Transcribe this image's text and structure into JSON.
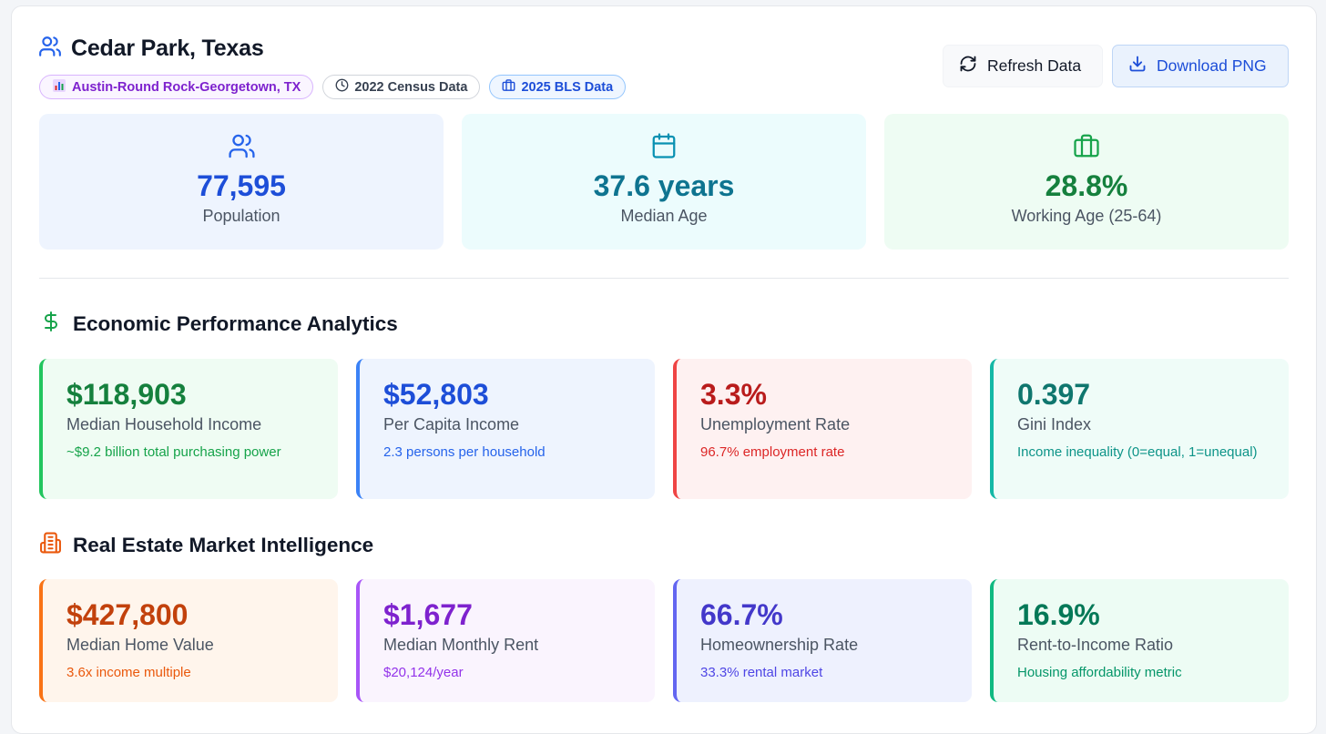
{
  "header": {
    "title": "Cedar Park, Texas",
    "badges": {
      "metro": "Austin-Round Rock-Georgetown, TX",
      "census": "2022 Census Data",
      "bls": "2025 BLS Data"
    },
    "refresh_label": "Refresh Data",
    "download_label": "Download PNG"
  },
  "stats": [
    {
      "value": "77,595",
      "label": "Population",
      "icon": "users-icon",
      "color": "#1d4ed8"
    },
    {
      "value": "37.6 years",
      "label": "Median Age",
      "icon": "calendar-icon",
      "color": "#0e7490"
    },
    {
      "value": "28.8%",
      "label": "Working Age (25-64)",
      "icon": "briefcase-icon",
      "color": "#15803d"
    }
  ],
  "economic": {
    "title": "Economic Performance Analytics",
    "cards": [
      {
        "value": "$118,903",
        "label": "Median Household Income",
        "sub": "~$9.2 billion total purchasing power"
      },
      {
        "value": "$52,803",
        "label": "Per Capita Income",
        "sub": "2.3 persons per household"
      },
      {
        "value": "3.3%",
        "label": "Unemployment Rate",
        "sub": "96.7% employment rate"
      },
      {
        "value": "0.397",
        "label": "Gini Index",
        "sub": "Income inequality (0=equal, 1=unequal)"
      }
    ]
  },
  "real_estate": {
    "title": "Real Estate Market Intelligence",
    "cards": [
      {
        "value": "$427,800",
        "label": "Median Home Value",
        "sub": "3.6x income multiple"
      },
      {
        "value": "$1,677",
        "label": "Median Monthly Rent",
        "sub": "$20,124/year"
      },
      {
        "value": "66.7%",
        "label": "Homeownership Rate",
        "sub": "33.3% rental market"
      },
      {
        "value": "16.9%",
        "label": "Rent-to-Income Ratio",
        "sub": "Housing affordability metric"
      }
    ]
  },
  "colors": {
    "green": "#15803d",
    "blue": "#1d4ed8",
    "red": "#b91c1c",
    "teal": "#0f766e",
    "orange": "#c2410c",
    "purple": "#7e22ce",
    "indigo": "#4338ca",
    "emerald": "#047857"
  }
}
